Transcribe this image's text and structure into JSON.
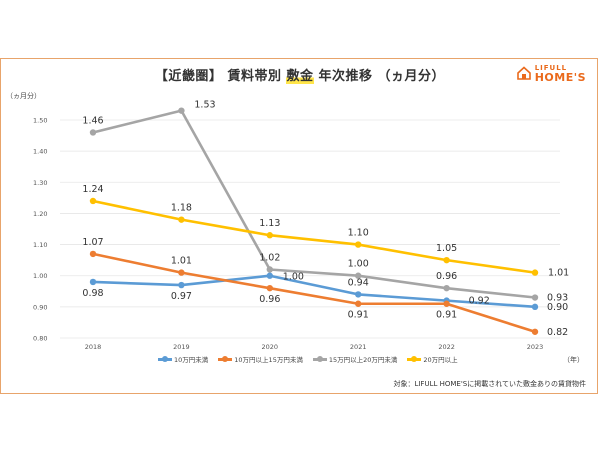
{
  "header": {
    "title_pre": "【近畿圏】 賃料帯別 ",
    "title_highlight": "敷金",
    "title_post": " 年次推移 （ヵ月分）"
  },
  "logo": {
    "line1": "LIFULL",
    "line2": "HOME'S"
  },
  "source_note": "対象：LIFULL HOME'Sに掲載されていた敷金ありの賃貸物件",
  "chart_data": {
    "type": "line",
    "title": "【近畿圏】 賃料帯別 敷金 年次推移 （ヵ月分）",
    "xlabel": "（年）",
    "ylabel": "（ヵ月分）",
    "categories": [
      "2018",
      "2019",
      "2020",
      "2021",
      "2022",
      "2023"
    ],
    "ylim": [
      0.8,
      1.5
    ],
    "yticks": [
      "0.80",
      "0.90",
      "1.00",
      "1.10",
      "1.20",
      "1.30",
      "1.40",
      "1.50"
    ],
    "grid": true,
    "legend": "bottom",
    "series": [
      {
        "name": "10万円未満",
        "color": "#5b9bd5",
        "values": [
          0.98,
          0.97,
          1.0,
          0.94,
          0.92,
          0.9
        ],
        "labels": [
          "0.98",
          "0.97",
          "1.00",
          "0.94",
          "0.92",
          "0.90"
        ]
      },
      {
        "name": "10万円以上15万円未満",
        "color": "#ed7d31",
        "values": [
          1.07,
          1.01,
          0.96,
          0.91,
          0.91,
          0.82
        ],
        "labels": [
          "1.07",
          "1.01",
          "0.96",
          "0.91",
          "0.91",
          "0.82"
        ]
      },
      {
        "name": "15万円以上20万円未満",
        "color": "#a5a5a5",
        "values": [
          1.46,
          1.53,
          1.02,
          1.0,
          0.96,
          0.93
        ],
        "labels": [
          "1.46",
          "1.53",
          "1.02",
          "1.00",
          "0.96",
          "0.93"
        ]
      },
      {
        "name": "20万円以上",
        "color": "#ffc000",
        "values": [
          1.24,
          1.18,
          1.13,
          1.1,
          1.05,
          1.01
        ],
        "labels": [
          "1.24",
          "1.18",
          "1.13",
          "1.10",
          "1.05",
          "1.01"
        ]
      }
    ]
  }
}
